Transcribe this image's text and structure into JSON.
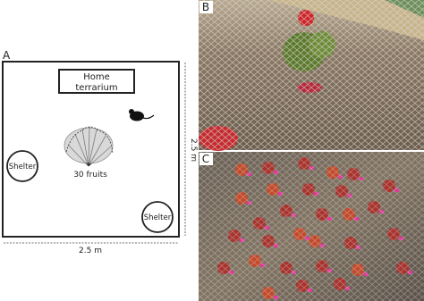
{
  "panels": {
    "a": {
      "label": "A",
      "terrarium": [
        "Home",
        "terrarium"
      ],
      "shelters": [
        "Shelter",
        "Shelter"
      ],
      "fruits": "30 fruits",
      "width": "2.5 m",
      "height": "2.5 m"
    },
    "b": {
      "label": "B"
    },
    "c": {
      "label": "C"
    }
  }
}
